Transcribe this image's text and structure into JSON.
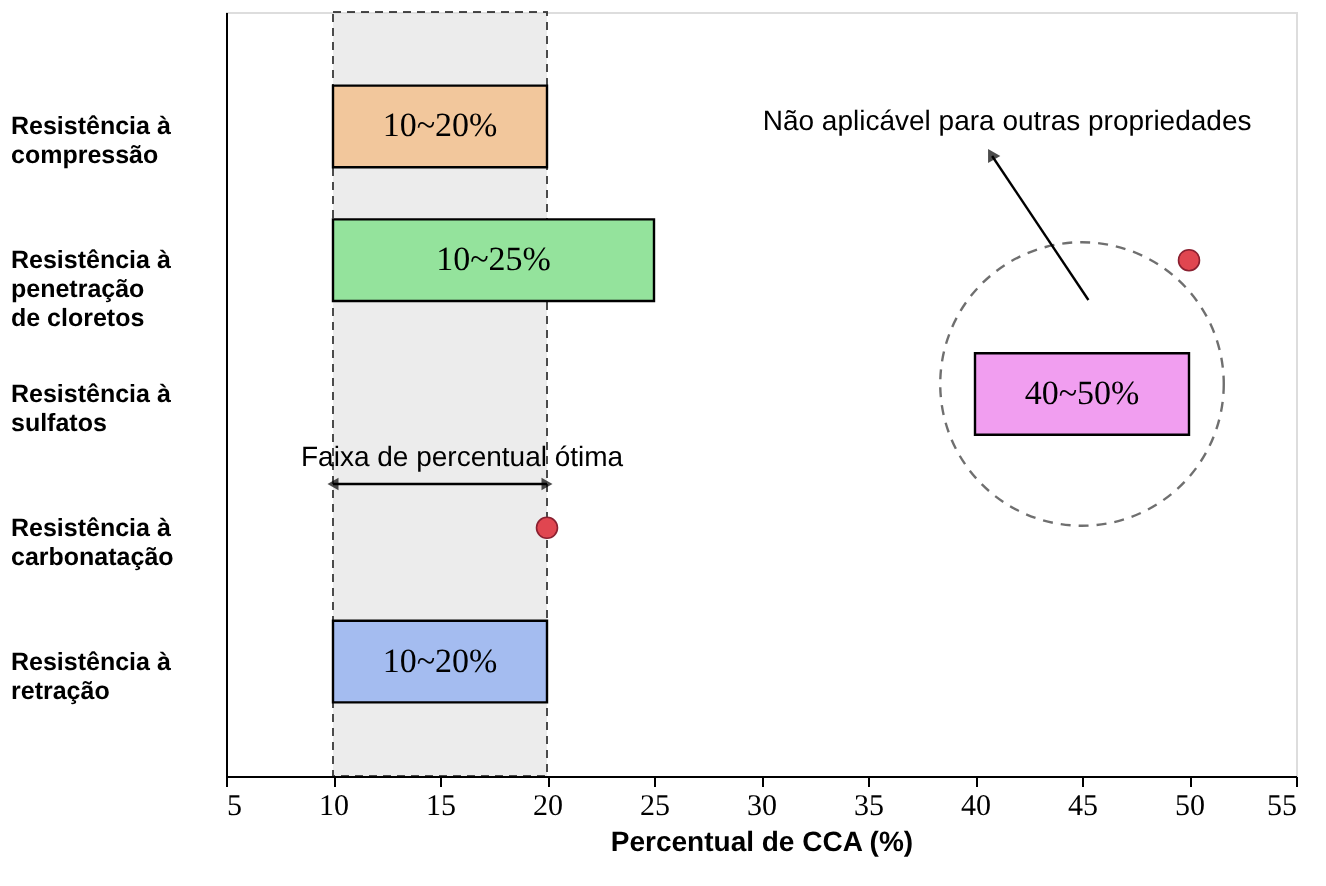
{
  "chart_data": {
    "type": "bar",
    "orientation": "horizontal",
    "xlabel": "Percentual de CCA (%)",
    "categories": [
      "Resistência à\ncompressão",
      "Resistência à\npenetração\nde cloretos",
      "Resistência à\nsulfatos",
      "Resistência à\ncarbonatação",
      "Resistência à\nretração"
    ],
    "xlim": [
      5,
      55
    ],
    "xticks": [
      5,
      10,
      15,
      20,
      25,
      30,
      35,
      40,
      45,
      50,
      55
    ],
    "grid": false,
    "series": [
      {
        "values": [
          10,
          15,
          10,
          null,
          10
        ],
        "base": [
          10,
          10,
          40,
          null,
          10
        ],
        "colors": [
          "#f2c79c",
          "#94e39c",
          "#f19ef0",
          null,
          "#a4bcf0"
        ]
      },
      {
        "type": "scatter",
        "color": "#e04650",
        "values": [
          null,
          50,
          null,
          20,
          null
        ]
      }
    ],
    "bands": [
      {
        "axis": "x",
        "from": 10,
        "to": 20,
        "label": "Faixa de percentual ótima",
        "color": "#e4e4e4"
      }
    ],
    "annotations": [
      "Não aplicável para outras propriedades",
      "10~20%",
      "10~25%",
      "40~50%",
      "10~20%"
    ]
  }
}
